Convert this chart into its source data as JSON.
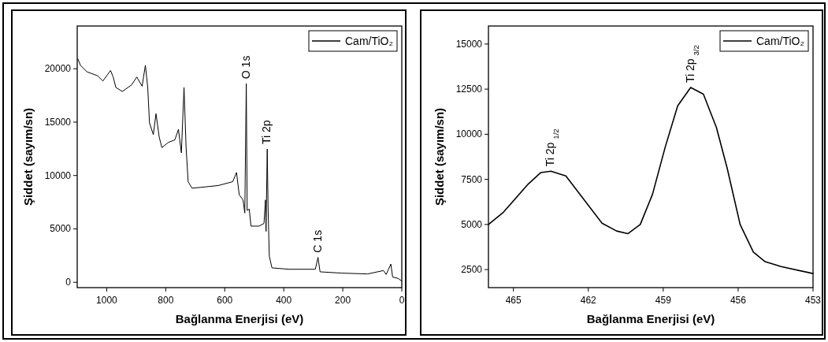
{
  "chart_data": [
    {
      "type": "line",
      "xlabel": "Bağlanma Enerjisi (eV)",
      "ylabel": "Şiddet (sayım/sn)",
      "xlim": [
        1100,
        0
      ],
      "ylim": [
        -500,
        24000
      ],
      "xticks": [
        1000,
        800,
        600,
        400,
        200,
        0
      ],
      "yticks": [
        0,
        5000,
        10000,
        15000,
        20000
      ],
      "legend": "top right",
      "series": [
        {
          "name": "Cam/TiO₂",
          "color": "#000000",
          "x": [
            1098,
            1089,
            1067,
            1031,
            1013,
            987,
            978,
            969,
            947,
            916,
            898,
            880,
            869,
            861,
            855,
            842,
            833,
            822,
            813,
            791,
            769,
            757,
            747,
            738,
            731,
            724,
            711,
            667,
            622,
            573,
            560,
            551,
            538,
            532,
            527,
            524,
            517,
            511,
            484,
            467,
            462,
            460,
            456,
            453,
            449,
            440,
            382,
            293,
            284,
            277,
            204,
            116,
            62,
            53,
            37,
            31,
            13,
            0
          ],
          "values": [
            20930,
            20320,
            19710,
            19340,
            18850,
            19830,
            19220,
            18240,
            17870,
            18480,
            19220,
            18360,
            20320,
            18240,
            14930,
            13830,
            15790,
            13590,
            12610,
            13100,
            13340,
            14320,
            12120,
            18240,
            12610,
            9420,
            8810,
            8930,
            9060,
            9420,
            10280,
            8200,
            7710,
            6490,
            18600,
            6730,
            6850,
            5260,
            5260,
            5510,
            7710,
            4770,
            12480,
            6730,
            2450,
            1350,
            1220,
            1220,
            2330,
            980,
            860,
            780,
            1100,
            730,
            1710,
            490,
            370,
            120
          ]
        }
      ],
      "annotations": [
        {
          "text": "O 1s",
          "x": 527,
          "y": 18600
        },
        {
          "text": "Ti 2p",
          "x": 456,
          "y": 12480
        },
        {
          "text": "C 1s",
          "x": 284,
          "y": 2330
        }
      ]
    },
    {
      "type": "line",
      "xlabel": "Bağlanma Enerjisi (eV)",
      "ylabel": "Şiddet (sayım/sn)",
      "xlim": [
        466,
        453
      ],
      "ylim": [
        1500,
        16000
      ],
      "xticks": [
        465,
        462,
        459,
        456,
        453
      ],
      "yticks": [
        2500,
        5000,
        7500,
        10000,
        12500,
        15000
      ],
      "legend": "top right",
      "series": [
        {
          "name": "Cam/TiO₂",
          "color": "#000000",
          "x": [
            466.0,
            465.4,
            464.4,
            463.9,
            463.5,
            462.9,
            461.45,
            460.87,
            460.42,
            459.92,
            459.43,
            458.92,
            458.42,
            457.9,
            457.39,
            456.87,
            456.44,
            455.92,
            455.39,
            454.92,
            454.28,
            453.0
          ],
          "values": [
            5000,
            5680,
            7250,
            7880,
            7950,
            7690,
            5070,
            4640,
            4490,
            5000,
            6670,
            9290,
            11580,
            12590,
            12220,
            10380,
            8130,
            5000,
            3470,
            2940,
            2670,
            2280
          ]
        }
      ],
      "annotations": [
        {
          "text": "Ti 2p $_{1/2}$",
          "x": 463.5,
          "y": 7950
        },
        {
          "text": "Ti 2p $_{3/2}$",
          "x": 457.9,
          "y": 12590
        }
      ]
    }
  ]
}
